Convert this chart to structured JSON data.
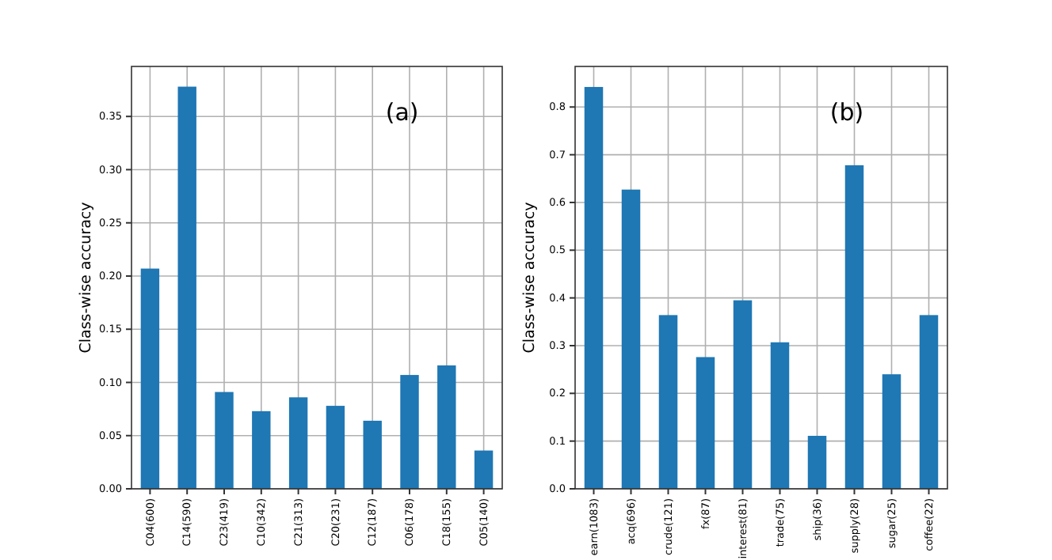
{
  "chart_data": [
    {
      "type": "bar",
      "categories": [
        "C04(600)",
        "C14(590)",
        "C23(419)",
        "C10(342)",
        "C21(313)",
        "C20(231)",
        "C12(187)",
        "C06(178)",
        "C18(155)",
        "C05(140)"
      ],
      "values": [
        0.207,
        0.378,
        0.091,
        0.073,
        0.086,
        0.078,
        0.064,
        0.107,
        0.116,
        0.036
      ],
      "color": "#1f77b4",
      "ylabel": "Class-wise accuracy",
      "ylim": [
        0,
        0.397
      ],
      "yticks": [
        {
          "value": 0,
          "label": "0.00"
        },
        {
          "value": 0.05,
          "label": "0.05"
        },
        {
          "value": 0.1,
          "label": "0.10"
        },
        {
          "value": 0.15,
          "label": "0.15"
        },
        {
          "value": 0.2,
          "label": "0.20"
        },
        {
          "value": 0.25,
          "label": "0.25"
        },
        {
          "value": 0.3,
          "label": "0.30"
        },
        {
          "value": 0.35,
          "label": "0.35"
        }
      ],
      "grid": true,
      "annotations": [
        "(a)"
      ]
    },
    {
      "type": "bar",
      "categories": [
        "earn(1083)",
        "acq(696)",
        "crude(121)",
        "fx(87)",
        "interest(81)",
        "trade(75)",
        "ship(36)",
        "supply(28)",
        "sugar(25)",
        "coffee(22)"
      ],
      "values": [
        0.842,
        0.627,
        0.364,
        0.276,
        0.395,
        0.307,
        0.111,
        0.678,
        0.24,
        0.364
      ],
      "color": "#1f77b4",
      "ylabel": "Class-wise accuracy",
      "ylim": [
        0,
        0.885
      ],
      "yticks": [
        {
          "value": 0,
          "label": "0.0"
        },
        {
          "value": 0.1,
          "label": "0.1"
        },
        {
          "value": 0.2,
          "label": "0.2"
        },
        {
          "value": 0.3,
          "label": "0.3"
        },
        {
          "value": 0.4,
          "label": "0.4"
        },
        {
          "value": 0.5,
          "label": "0.5"
        },
        {
          "value": 0.6,
          "label": "0.6"
        },
        {
          "value": 0.7,
          "label": "0.7"
        },
        {
          "value": 0.8,
          "label": "0.8"
        }
      ],
      "grid": true,
      "annotations": [
        "(b)"
      ]
    }
  ]
}
